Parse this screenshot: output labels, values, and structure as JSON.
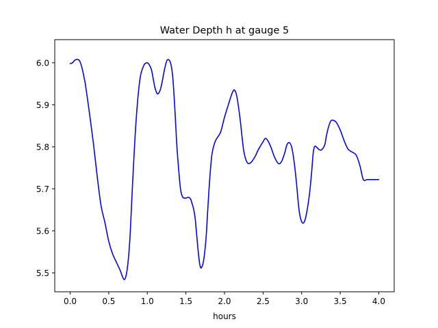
{
  "chart_data": {
    "type": "line",
    "title": "Water Depth h at gauge 5",
    "xlabel": "hours",
    "ylabel": "",
    "xlim": [
      -0.2,
      4.2
    ],
    "ylim": [
      5.455,
      6.055
    ],
    "x_ticks": [
      0.0,
      0.5,
      1.0,
      1.5,
      2.0,
      2.5,
      3.0,
      3.5,
      4.0
    ],
    "x_tick_labels": [
      "0.0",
      "0.5",
      "1.0",
      "1.5",
      "2.0",
      "2.5",
      "3.0",
      "3.5",
      "4.0"
    ],
    "y_ticks": [
      5.5,
      5.6,
      5.7,
      5.8,
      5.9,
      6.0
    ],
    "y_tick_labels": [
      "5.5",
      "5.6",
      "5.7",
      "5.8",
      "5.9",
      "6.0"
    ],
    "grid": false,
    "legend": "none",
    "series": [
      {
        "color": "#0000ff",
        "x": [
          0.0,
          0.03,
          0.06,
          0.09,
          0.12,
          0.15,
          0.18,
          0.2,
          0.25,
          0.3,
          0.35,
          0.4,
          0.45,
          0.5,
          0.55,
          0.6,
          0.65,
          0.68,
          0.7,
          0.72,
          0.74,
          0.76,
          0.78,
          0.8,
          0.85,
          0.9,
          0.95,
          1.0,
          1.04,
          1.06,
          1.08,
          1.1,
          1.13,
          1.16,
          1.18,
          1.2,
          1.23,
          1.26,
          1.3,
          1.33,
          1.36,
          1.38,
          1.4,
          1.43,
          1.46,
          1.5,
          1.53,
          1.56,
          1.58,
          1.6,
          1.62,
          1.64,
          1.66,
          1.68,
          1.7,
          1.73,
          1.76,
          1.78,
          1.8,
          1.82,
          1.84,
          1.87,
          1.9,
          1.95,
          2.0,
          2.05,
          2.1,
          2.13,
          2.16,
          2.2,
          2.23,
          2.25,
          2.28,
          2.31,
          2.35,
          2.4,
          2.43,
          2.46,
          2.5,
          2.53,
          2.56,
          2.6,
          2.65,
          2.7,
          2.74,
          2.78,
          2.81,
          2.84,
          2.87,
          2.9,
          2.93,
          2.95,
          2.97,
          3.0,
          3.03,
          3.06,
          3.1,
          3.13,
          3.15,
          3.17,
          3.2,
          3.23,
          3.26,
          3.3,
          3.32,
          3.35,
          3.38,
          3.41,
          3.45,
          3.5,
          3.55,
          3.6,
          3.65,
          3.7,
          3.73,
          3.76,
          3.8,
          3.85,
          3.9,
          3.95,
          4.0
        ],
        "y": [
          5.998,
          6.0,
          6.006,
          6.008,
          6.005,
          5.99,
          5.965,
          5.945,
          5.88,
          5.81,
          5.73,
          5.66,
          5.62,
          5.575,
          5.545,
          5.525,
          5.505,
          5.49,
          5.484,
          5.49,
          5.51,
          5.545,
          5.6,
          5.68,
          5.85,
          5.955,
          5.992,
          6.0,
          5.99,
          5.978,
          5.958,
          5.94,
          5.926,
          5.932,
          5.944,
          5.962,
          5.99,
          6.007,
          6.0,
          5.965,
          5.88,
          5.81,
          5.76,
          5.7,
          5.68,
          5.678,
          5.68,
          5.676,
          5.665,
          5.652,
          5.63,
          5.59,
          5.55,
          5.52,
          5.512,
          5.53,
          5.58,
          5.64,
          5.7,
          5.75,
          5.785,
          5.808,
          5.82,
          5.835,
          5.87,
          5.9,
          5.928,
          5.935,
          5.92,
          5.87,
          5.82,
          5.79,
          5.768,
          5.76,
          5.764,
          5.778,
          5.79,
          5.8,
          5.812,
          5.82,
          5.815,
          5.8,
          5.775,
          5.76,
          5.765,
          5.785,
          5.805,
          5.81,
          5.8,
          5.768,
          5.72,
          5.68,
          5.645,
          5.622,
          5.62,
          5.638,
          5.685,
          5.74,
          5.785,
          5.801,
          5.798,
          5.793,
          5.793,
          5.805,
          5.825,
          5.848,
          5.862,
          5.863,
          5.858,
          5.84,
          5.815,
          5.795,
          5.788,
          5.782,
          5.77,
          5.752,
          5.722,
          5.722,
          5.722,
          5.722,
          5.722
        ]
      }
    ]
  }
}
